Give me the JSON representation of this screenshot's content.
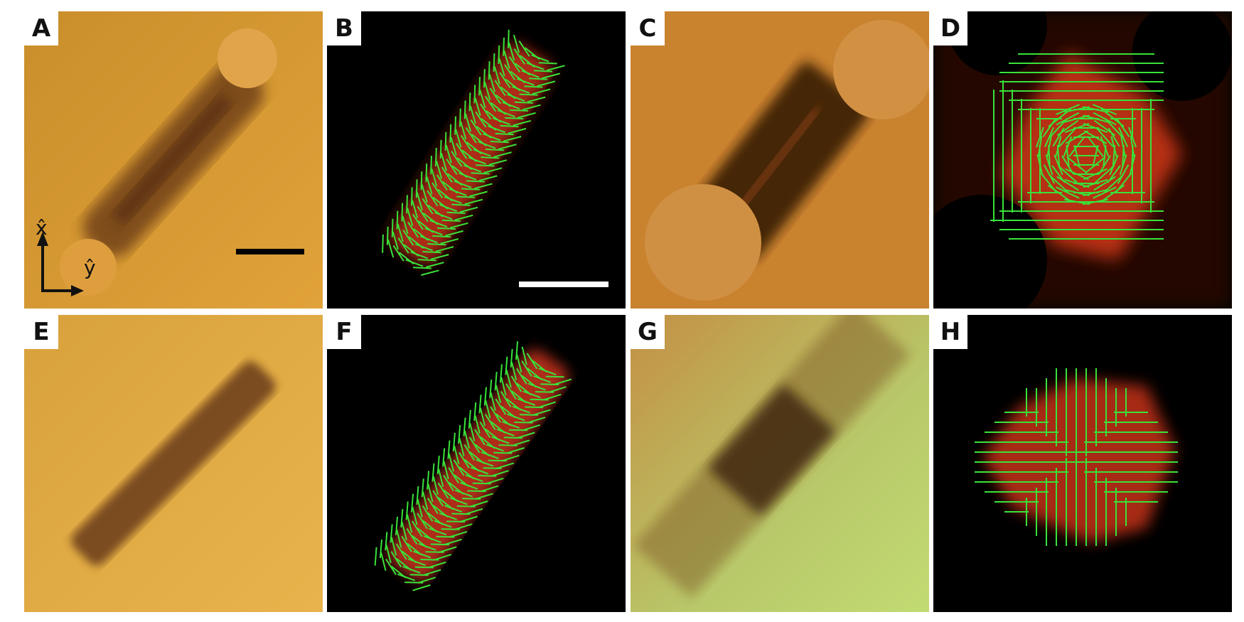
{
  "panels": [
    {
      "id": "A",
      "label": "A"
    },
    {
      "id": "B",
      "label": "B"
    },
    {
      "id": "C",
      "label": "C"
    },
    {
      "id": "D",
      "label": "D"
    },
    {
      "id": "E",
      "label": "E"
    },
    {
      "id": "F",
      "label": "F"
    },
    {
      "id": "G",
      "label": "G"
    },
    {
      "id": "H",
      "label": "H"
    }
  ],
  "axes": {
    "x_label": "x̂",
    "y_label": "ŷ"
  },
  "colors": {
    "amber_bg": "#d6992e",
    "dark_bg": "#000000",
    "fluor_red": "#c0311a",
    "director_green": "#39e23a",
    "scale_bar_black": "#000000",
    "scale_bar_white": "#ffffff",
    "lime_bg": "#bcd46a"
  }
}
